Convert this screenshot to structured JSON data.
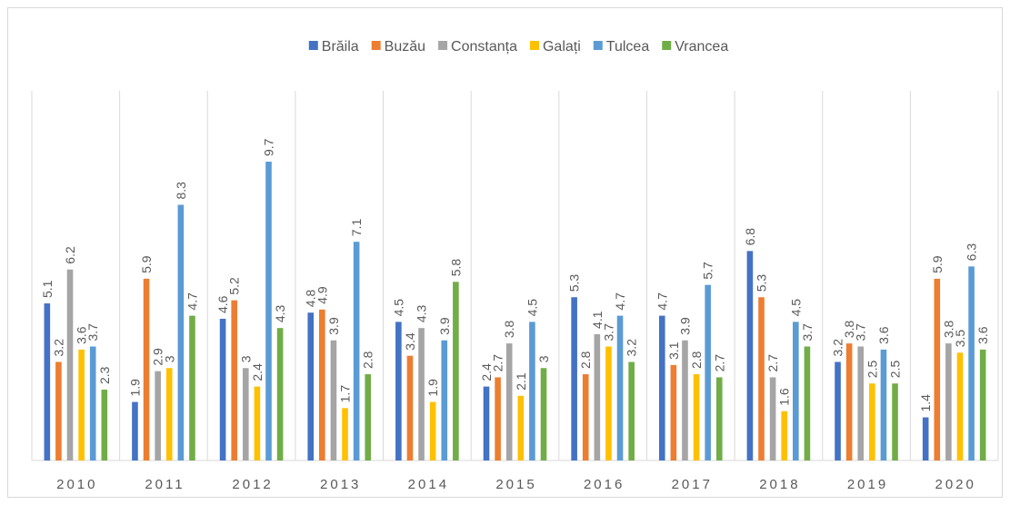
{
  "chart_data": {
    "type": "bar",
    "categories": [
      "2010",
      "2011",
      "2012",
      "2013",
      "2014",
      "2015",
      "2016",
      "2017",
      "2018",
      "2019",
      "2020"
    ],
    "series": [
      {
        "name": "Brăila",
        "color": "#4472c4",
        "values": [
          5.1,
          1.9,
          4.6,
          4.8,
          4.5,
          2.4,
          5.3,
          4.7,
          6.8,
          3.2,
          1.4
        ]
      },
      {
        "name": "Buzău",
        "color": "#ed7d31",
        "values": [
          3.2,
          5.9,
          5.2,
          4.9,
          3.4,
          2.7,
          2.8,
          3.1,
          5.3,
          3.8,
          5.9
        ]
      },
      {
        "name": "Constanța",
        "color": "#a5a5a5",
        "values": [
          6.2,
          2.9,
          3,
          3.9,
          4.3,
          3.8,
          4.1,
          3.9,
          2.7,
          3.7,
          3.8
        ]
      },
      {
        "name": "Galați",
        "color": "#ffc000",
        "values": [
          3.6,
          3,
          2.4,
          1.7,
          1.9,
          2.1,
          3.7,
          2.8,
          1.6,
          2.5,
          3.5
        ]
      },
      {
        "name": "Tulcea",
        "color": "#5b9bd5",
        "values": [
          3.7,
          8.3,
          9.7,
          7.1,
          3.9,
          4.5,
          4.7,
          5.7,
          4.5,
          3.6,
          6.3
        ]
      },
      {
        "name": "Vrancea",
        "color": "#70ad47",
        "values": [
          2.3,
          4.7,
          4.3,
          2.8,
          5.8,
          3,
          3.2,
          2.7,
          3.7,
          2.5,
          3.6
        ]
      }
    ],
    "ylim": [
      0,
      12
    ],
    "legend": "top",
    "grid": false
  }
}
